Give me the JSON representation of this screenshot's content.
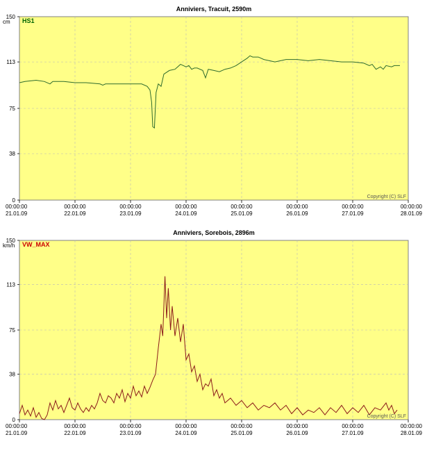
{
  "chart_data": [
    {
      "type": "line",
      "title": "Anniviers, Tracuit, 2590m",
      "ylabel": "cm",
      "ylim": [
        0,
        150
      ],
      "yticks": [
        "0",
        "38",
        "75",
        "113",
        "150"
      ],
      "xticks": [
        {
          "time": "00:00:00",
          "date": "21.01.09"
        },
        {
          "time": "00:00:00",
          "date": "22.01.09"
        },
        {
          "time": "00:00:00",
          "date": "23.01.09"
        },
        {
          "time": "00:00:00",
          "date": "24.01.09"
        },
        {
          "time": "00:00:00",
          "date": "25.01.09"
        },
        {
          "time": "00:00:00",
          "date": "26.01.09"
        },
        {
          "time": "00:00:00",
          "date": "27.01.09"
        },
        {
          "time": "00:00:00",
          "date": "28.01.09"
        }
      ],
      "legend": "HS1",
      "legend_color": "#006400",
      "line_color": "#2e6b2e",
      "background": "#ffff88",
      "grid": true,
      "copyright": "Copyright (C) SLF",
      "series": [
        {
          "name": "HS1",
          "points": [
            [
              0.0,
              96
            ],
            [
              0.1,
              97
            ],
            [
              0.3,
              98
            ],
            [
              0.45,
              97
            ],
            [
              0.55,
              95
            ],
            [
              0.6,
              97
            ],
            [
              0.8,
              97
            ],
            [
              1.0,
              96
            ],
            [
              1.2,
              96
            ],
            [
              1.45,
              95
            ],
            [
              1.5,
              94
            ],
            [
              1.55,
              95
            ],
            [
              1.8,
              95
            ],
            [
              2.0,
              95
            ],
            [
              2.2,
              95
            ],
            [
              2.3,
              93
            ],
            [
              2.35,
              90
            ],
            [
              2.38,
              80
            ],
            [
              2.4,
              60
            ],
            [
              2.43,
              59
            ],
            [
              2.46,
              88
            ],
            [
              2.5,
              95
            ],
            [
              2.55,
              93
            ],
            [
              2.6,
              103
            ],
            [
              2.7,
              106
            ],
            [
              2.8,
              107
            ],
            [
              2.9,
              111
            ],
            [
              3.0,
              109
            ],
            [
              3.05,
              110
            ],
            [
              3.1,
              107
            ],
            [
              3.15,
              108
            ],
            [
              3.2,
              108
            ],
            [
              3.3,
              106
            ],
            [
              3.35,
              100
            ],
            [
              3.4,
              107
            ],
            [
              3.5,
              106
            ],
            [
              3.6,
              105
            ],
            [
              3.7,
              107
            ],
            [
              3.8,
              108
            ],
            [
              3.9,
              110
            ],
            [
              4.0,
              113
            ],
            [
              4.1,
              116
            ],
            [
              4.15,
              118
            ],
            [
              4.2,
              117
            ],
            [
              4.3,
              117
            ],
            [
              4.4,
              115
            ],
            [
              4.5,
              114
            ],
            [
              4.6,
              113
            ],
            [
              4.8,
              115
            ],
            [
              5.0,
              115
            ],
            [
              5.2,
              114
            ],
            [
              5.4,
              115
            ],
            [
              5.6,
              114
            ],
            [
              5.8,
              113
            ],
            [
              6.0,
              113
            ],
            [
              6.2,
              112
            ],
            [
              6.3,
              110
            ],
            [
              6.35,
              111
            ],
            [
              6.42,
              107
            ],
            [
              6.5,
              109
            ],
            [
              6.55,
              107
            ],
            [
              6.6,
              110
            ],
            [
              6.7,
              109
            ],
            [
              6.75,
              110
            ],
            [
              6.85,
              110
            ]
          ]
        }
      ]
    },
    {
      "type": "line",
      "title": "Anniviers, Sorebois, 2896m",
      "ylabel": "km/h",
      "ylim": [
        0,
        150
      ],
      "yticks": [
        "0",
        "38",
        "75",
        "113",
        "150"
      ],
      "xticks": [
        {
          "time": "00:00:00",
          "date": "21.01.09"
        },
        {
          "time": "00:00:00",
          "date": "22.01.09"
        },
        {
          "time": "00:00:00",
          "date": "23.01.09"
        },
        {
          "time": "00:00:00",
          "date": "24.01.09"
        },
        {
          "time": "00:00:00",
          "date": "25.01.09"
        },
        {
          "time": "00:00:00",
          "date": "26.01.09"
        },
        {
          "time": "00:00:00",
          "date": "27.01.09"
        },
        {
          "time": "00:00:00",
          "date": "28.01.09"
        }
      ],
      "legend": "VW_MAX",
      "legend_color": "#cc0000",
      "line_color": "#8b1a1a",
      "background": "#ffff88",
      "grid": true,
      "copyright": "Copyright (C) SLF",
      "series": [
        {
          "name": "VW_MAX",
          "points": [
            [
              0.0,
              5
            ],
            [
              0.05,
              12
            ],
            [
              0.1,
              4
            ],
            [
              0.15,
              8
            ],
            [
              0.2,
              3
            ],
            [
              0.25,
              10
            ],
            [
              0.3,
              2
            ],
            [
              0.35,
              6
            ],
            [
              0.4,
              1
            ],
            [
              0.45,
              0
            ],
            [
              0.5,
              4
            ],
            [
              0.55,
              14
            ],
            [
              0.6,
              8
            ],
            [
              0.65,
              16
            ],
            [
              0.7,
              9
            ],
            [
              0.75,
              12
            ],
            [
              0.8,
              6
            ],
            [
              0.85,
              12
            ],
            [
              0.9,
              18
            ],
            [
              0.95,
              10
            ],
            [
              1.0,
              8
            ],
            [
              1.05,
              14
            ],
            [
              1.1,
              9
            ],
            [
              1.15,
              6
            ],
            [
              1.2,
              10
            ],
            [
              1.25,
              7
            ],
            [
              1.3,
              12
            ],
            [
              1.35,
              9
            ],
            [
              1.4,
              14
            ],
            [
              1.45,
              22
            ],
            [
              1.5,
              16
            ],
            [
              1.55,
              14
            ],
            [
              1.6,
              20
            ],
            [
              1.65,
              18
            ],
            [
              1.7,
              14
            ],
            [
              1.75,
              22
            ],
            [
              1.8,
              18
            ],
            [
              1.85,
              25
            ],
            [
              1.9,
              15
            ],
            [
              1.95,
              22
            ],
            [
              2.0,
              18
            ],
            [
              2.05,
              28
            ],
            [
              2.1,
              20
            ],
            [
              2.15,
              24
            ],
            [
              2.2,
              19
            ],
            [
              2.25,
              28
            ],
            [
              2.3,
              22
            ],
            [
              2.35,
              27
            ],
            [
              2.4,
              33
            ],
            [
              2.45,
              38
            ],
            [
              2.5,
              60
            ],
            [
              2.55,
              80
            ],
            [
              2.58,
              70
            ],
            [
              2.62,
              120
            ],
            [
              2.65,
              85
            ],
            [
              2.68,
              110
            ],
            [
              2.72,
              75
            ],
            [
              2.75,
              95
            ],
            [
              2.8,
              70
            ],
            [
              2.85,
              85
            ],
            [
              2.9,
              65
            ],
            [
              2.95,
              80
            ],
            [
              3.0,
              50
            ],
            [
              3.05,
              55
            ],
            [
              3.1,
              40
            ],
            [
              3.15,
              45
            ],
            [
              3.2,
              32
            ],
            [
              3.25,
              38
            ],
            [
              3.3,
              25
            ],
            [
              3.35,
              30
            ],
            [
              3.4,
              28
            ],
            [
              3.45,
              34
            ],
            [
              3.5,
              20
            ],
            [
              3.55,
              25
            ],
            [
              3.6,
              18
            ],
            [
              3.65,
              22
            ],
            [
              3.7,
              14
            ],
            [
              3.8,
              18
            ],
            [
              3.9,
              12
            ],
            [
              4.0,
              16
            ],
            [
              4.1,
              10
            ],
            [
              4.2,
              14
            ],
            [
              4.3,
              8
            ],
            [
              4.4,
              12
            ],
            [
              4.5,
              10
            ],
            [
              4.6,
              14
            ],
            [
              4.7,
              8
            ],
            [
              4.8,
              12
            ],
            [
              4.9,
              5
            ],
            [
              5.0,
              10
            ],
            [
              5.1,
              4
            ],
            [
              5.2,
              8
            ],
            [
              5.3,
              6
            ],
            [
              5.4,
              10
            ],
            [
              5.5,
              4
            ],
            [
              5.6,
              10
            ],
            [
              5.7,
              6
            ],
            [
              5.8,
              12
            ],
            [
              5.9,
              5
            ],
            [
              6.0,
              10
            ],
            [
              6.1,
              6
            ],
            [
              6.2,
              12
            ],
            [
              6.3,
              4
            ],
            [
              6.4,
              10
            ],
            [
              6.5,
              8
            ],
            [
              6.6,
              14
            ],
            [
              6.65,
              8
            ],
            [
              6.7,
              12
            ],
            [
              6.75,
              5
            ],
            [
              6.8,
              8
            ]
          ]
        }
      ]
    }
  ]
}
